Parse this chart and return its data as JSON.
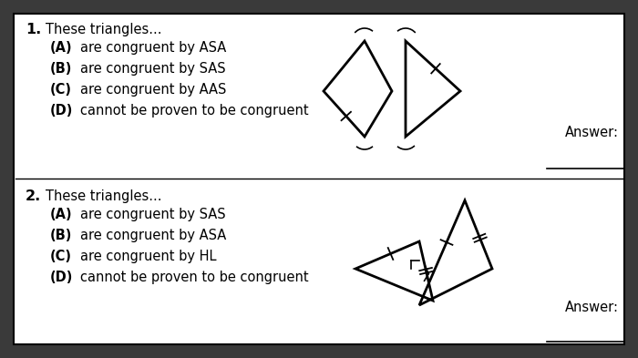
{
  "outer_bg": "#3a3a3a",
  "inner_bg": "#ffffff",
  "border_color": "#000000",
  "text_color": "#000000",
  "q1": {
    "number": "1.",
    "stem": "These triangles...",
    "options": [
      [
        "(A)",
        "are congruent by ASA"
      ],
      [
        "(B)",
        "are congruent by SAS"
      ],
      [
        "(C)",
        "are congruent by AAS"
      ],
      [
        "(D)",
        "cannot be proven to be congruent"
      ]
    ],
    "answer_label": "Answer:"
  },
  "q2": {
    "number": "2.",
    "stem": "These triangles...",
    "options": [
      [
        "(A)",
        "are congruent by SAS"
      ],
      [
        "(B)",
        "are congruent by ASA"
      ],
      [
        "(C)",
        "are congruent by HL"
      ],
      [
        "(D)",
        "cannot be proven to be congruent"
      ]
    ],
    "answer_label": "Answer:"
  },
  "font_size_stem": 10.5,
  "font_size_option": 10.5,
  "font_size_number": 11.5,
  "font_family": "DejaVu Sans"
}
